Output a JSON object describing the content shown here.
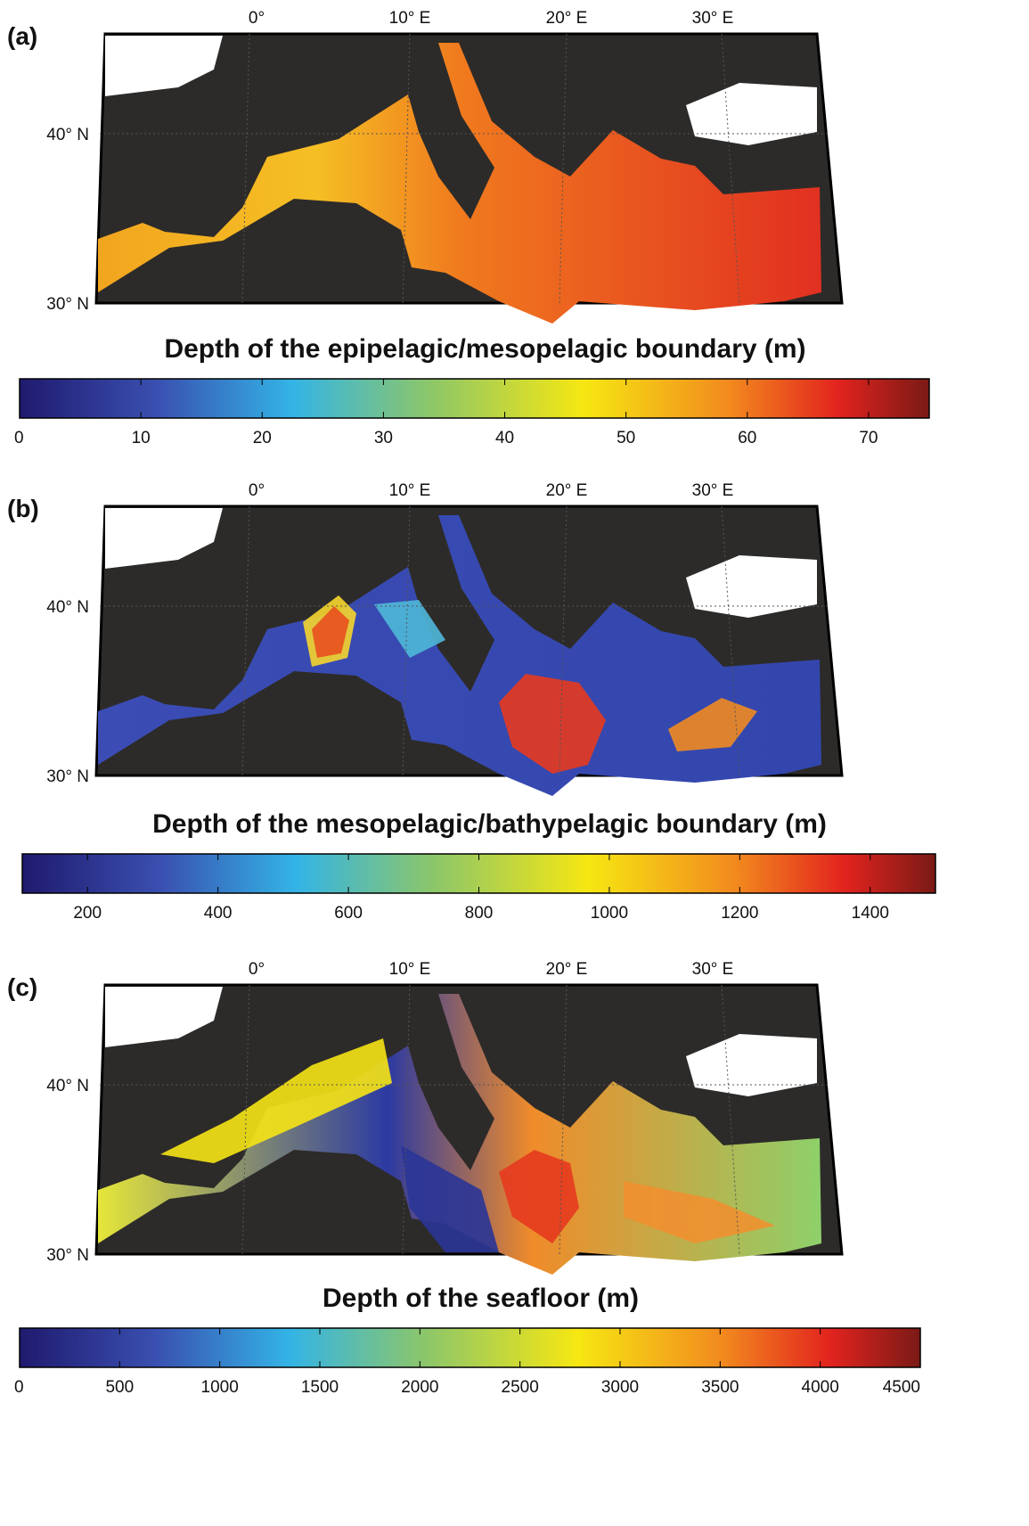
{
  "panels": [
    {
      "label": "(a)",
      "lon_labels": [
        "0°",
        "10° E",
        "20° E",
        "30° E"
      ],
      "lat_labels": [
        "40° N",
        "30° N"
      ],
      "colorbar": {
        "title": "Depth of the epipelagic/mesopelagic boundary (m)",
        "range": [
          0,
          75
        ],
        "ticks": [
          0,
          10,
          20,
          30,
          40,
          50,
          60,
          70
        ]
      }
    },
    {
      "label": "(b)",
      "lon_labels": [
        "0°",
        "10° E",
        "20° E",
        "30° E"
      ],
      "lat_labels": [
        "40° N",
        "30° N"
      ],
      "colorbar": {
        "title": "Depth of the mesopelagic/bathypelagic boundary (m)",
        "range": [
          100,
          1500
        ],
        "ticks": [
          200,
          400,
          600,
          800,
          1000,
          1200,
          1400
        ]
      }
    },
    {
      "label": "(c)",
      "lon_labels": [
        "0°",
        "10° E",
        "20° E",
        "30° E"
      ],
      "lat_labels": [
        "40° N",
        "30° N"
      ],
      "colorbar": {
        "title": "Depth of the seafloor (m)",
        "range": [
          0,
          4500
        ],
        "ticks": [
          0,
          500,
          1000,
          1500,
          2000,
          2500,
          3000,
          3500,
          4000,
          4500
        ]
      }
    }
  ]
}
